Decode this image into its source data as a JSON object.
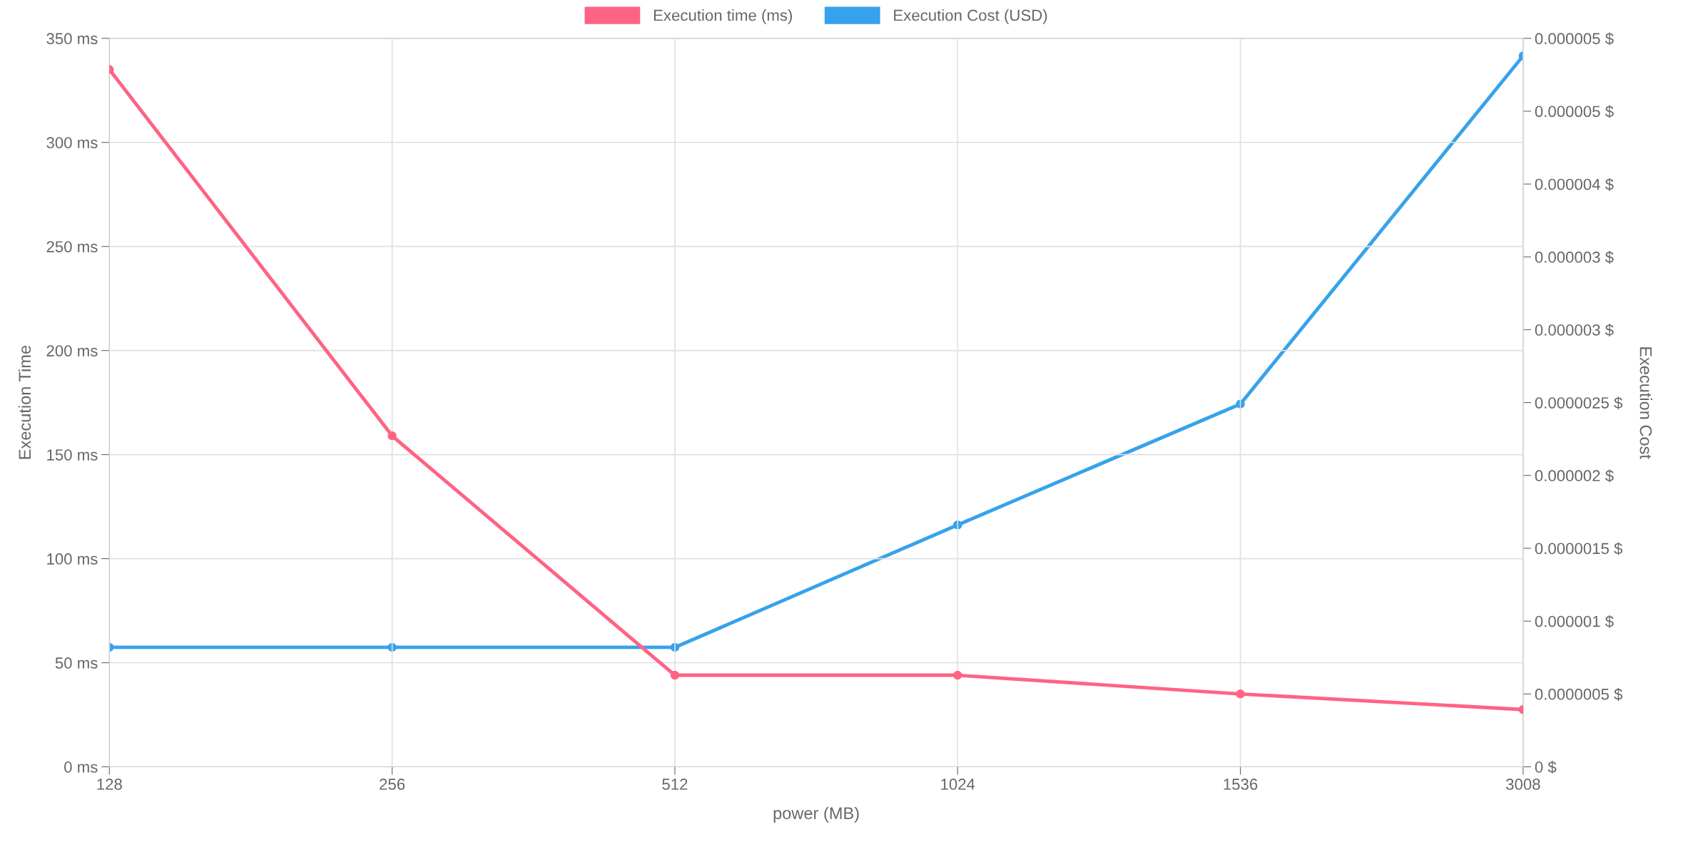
{
  "chart_data": {
    "type": "line",
    "xlabel": "power (MB)",
    "ylabel": "Execution Time",
    "y2label": "Execution Cost",
    "categories": [
      "128",
      "256",
      "512",
      "1024",
      "1536",
      "3008"
    ],
    "series": [
      {
        "name": "Execution time (ms)",
        "color": "#ff6384",
        "values": [
          335,
          159,
          44,
          44,
          35,
          27.5
        ]
      },
      {
        "name": "Execution Cost (USD)",
        "color": "#36a2eb",
        "axis": "y2",
        "values": [
          8.2e-07,
          8.2e-07,
          8.2e-07,
          1.66e-06,
          2.49e-06,
          4.88e-06
        ]
      }
    ],
    "ylim": [
      0,
      350
    ],
    "yticks": [
      {
        "value": 0,
        "label": "0 ms"
      },
      {
        "value": 50,
        "label": "50 ms"
      },
      {
        "value": 100,
        "label": "100 ms"
      },
      {
        "value": 150,
        "label": "150 ms"
      },
      {
        "value": 200,
        "label": "200 ms"
      },
      {
        "value": 250,
        "label": "250 ms"
      },
      {
        "value": 300,
        "label": "300 ms"
      },
      {
        "value": 350,
        "label": "350 ms"
      }
    ],
    "y2lim": [
      0,
      5e-06
    ],
    "y2ticks": [
      {
        "value": 0,
        "label": "0 $"
      },
      {
        "value": 5e-07,
        "label": "0.0000005 $"
      },
      {
        "value": 1e-06,
        "label": "0.000001 $"
      },
      {
        "value": 1.5e-06,
        "label": "0.0000015 $"
      },
      {
        "value": 2e-06,
        "label": "0.000002 $"
      },
      {
        "value": 2.5e-06,
        "label": "0.0000025 $"
      },
      {
        "value": 3e-06,
        "label": "0.000003 $"
      },
      {
        "value": 3.5e-06,
        "label": "0.000003 $"
      },
      {
        "value": 4e-06,
        "label": "0.000004 $"
      },
      {
        "value": 4.5e-06,
        "label": "0.000005 $"
      },
      {
        "value": 5e-06,
        "label": "0.000005 $"
      }
    ],
    "grid": true,
    "legend": "top",
    "marker": "circle",
    "line_style": "solid"
  }
}
